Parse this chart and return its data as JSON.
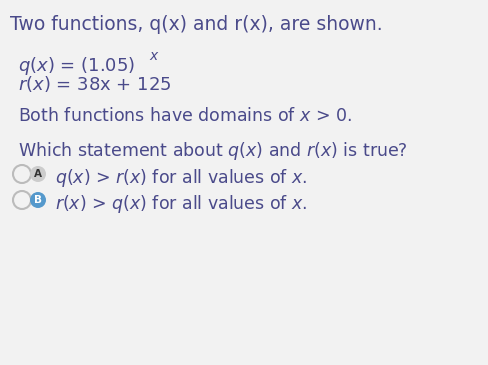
{
  "background_color": "#f2f2f2",
  "text_color": "#4a4a8a",
  "title": "Two functions, q(x) and r(x), are shown.",
  "q_func": "q(x) = (1.05)",
  "q_exp": "x",
  "r_func": "r(x) = 38x + 125",
  "domain": "Both functions have domains of x > 0.",
  "question": "Which statement about q(x) and r(x) is true?",
  "opt_a": "q(x) > r(x) for all values of x.",
  "opt_b": "r(x) > q(x) for all values of x.",
  "label_a": "A",
  "label_b": "B",
  "title_fontsize": 13.5,
  "body_fontsize": 12.5,
  "func_fontsize": 13.0,
  "opt_fontsize": 12.5,
  "radio_outer_color": "#bbbbbb",
  "radio_inner_a_color": "#cccccc",
  "radio_inner_b_color": "#5599cc"
}
